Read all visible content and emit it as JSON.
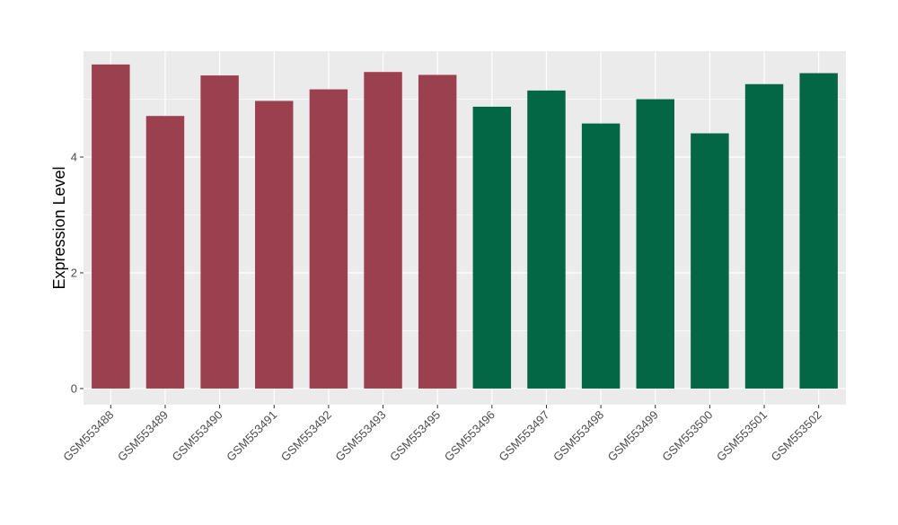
{
  "chart_data": {
    "type": "bar",
    "title": "",
    "xlabel": "",
    "ylabel": "Expression Level",
    "ylim": [
      -0.28,
      5.83
    ],
    "yticks": [
      0,
      2,
      4
    ],
    "grid": true,
    "legend": "none",
    "categories": [
      "GSM553488",
      "GSM553489",
      "GSM553490",
      "GSM553491",
      "GSM553492",
      "GSM553493",
      "GSM553495",
      "GSM553496",
      "GSM553497",
      "GSM553498",
      "GSM553499",
      "GSM553500",
      "GSM553501",
      "GSM553502"
    ],
    "values": [
      5.6,
      4.71,
      5.41,
      4.97,
      5.17,
      5.47,
      5.42,
      4.87,
      5.15,
      4.58,
      5.0,
      4.41,
      5.26,
      5.45
    ],
    "groups": [
      "g1",
      "g1",
      "g1",
      "g1",
      "g1",
      "g1",
      "g1",
      "g2",
      "g2",
      "g2",
      "g2",
      "g2",
      "g2",
      "g2"
    ],
    "colors": {
      "g1": "#9a404f",
      "g2": "#036644"
    },
    "panel_background": "#ebebeb",
    "grid_color": "#ffffff"
  }
}
